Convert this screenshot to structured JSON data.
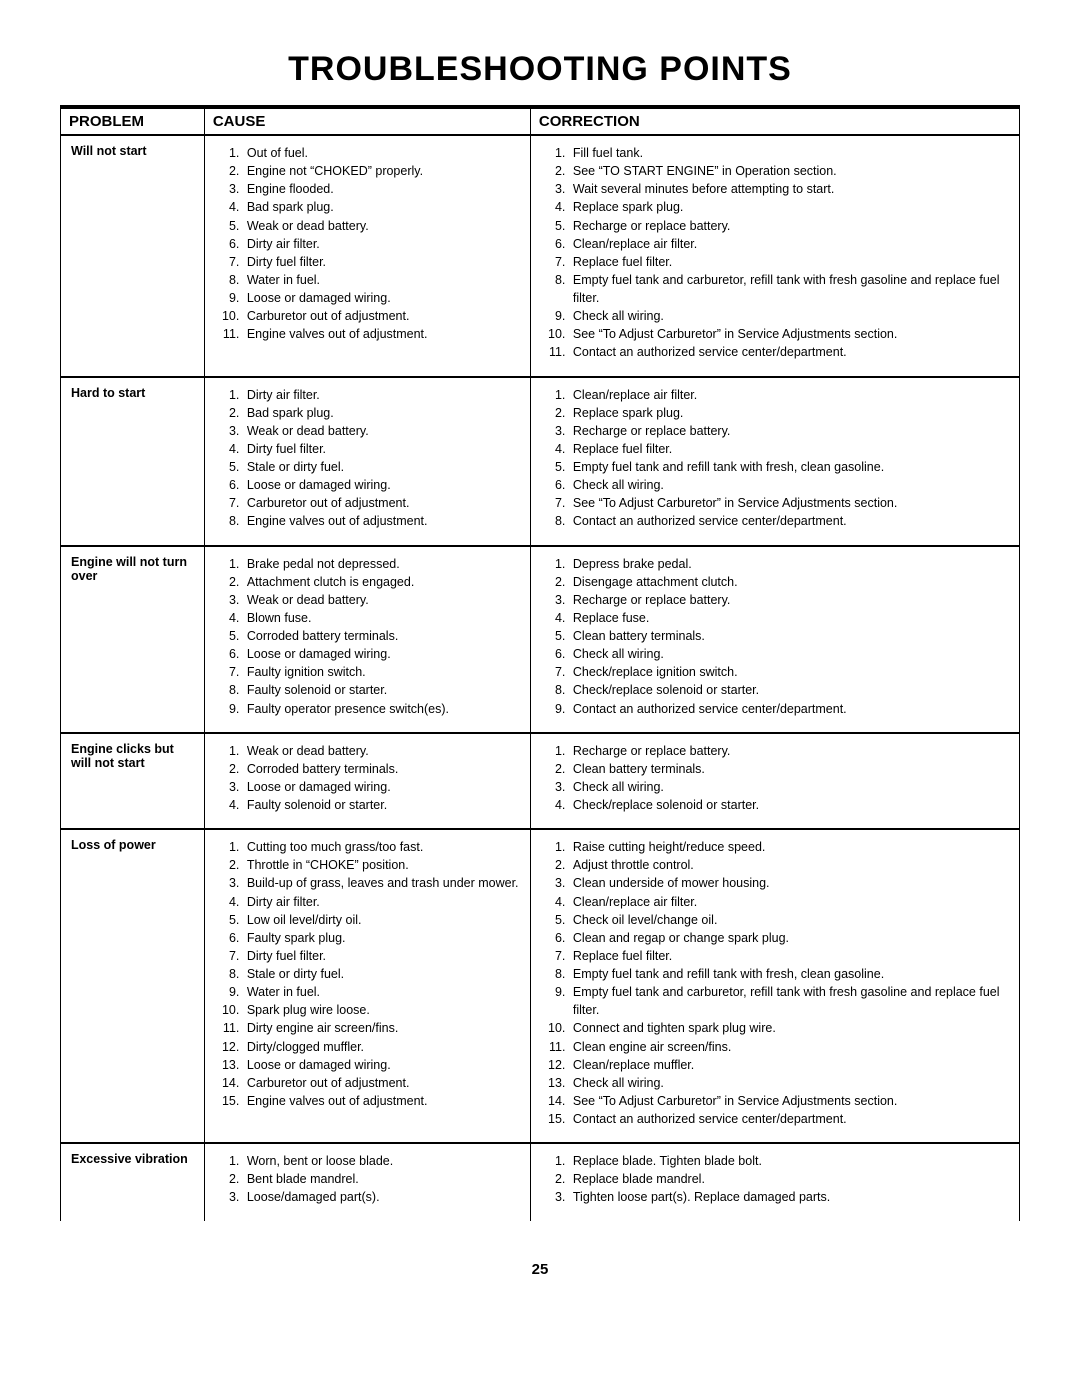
{
  "title": "TROUBLESHOOTING POINTS",
  "pageNumber": "25",
  "columns": {
    "problem": "PROBLEM",
    "cause": "CAUSE",
    "correction": "CORRECTION"
  },
  "colWidths": {
    "problem": "15%",
    "cause": "34%",
    "correction": "51%"
  },
  "rows": [
    {
      "problem": "Will not start",
      "causes": [
        "Out of fuel.",
        "Engine not “CHOKED” properly.",
        "Engine flooded.",
        "Bad spark plug.",
        "Weak or dead battery.",
        "Dirty air filter.",
        "Dirty fuel filter.",
        "Water in fuel.",
        "Loose or damaged wiring.",
        "Carburetor out of adjustment.",
        "Engine valves out of adjustment."
      ],
      "corrections": [
        "Fill fuel tank.",
        "See “TO START ENGINE” in Operation section.",
        "Wait several minutes before attempting to start.",
        "Replace spark plug.",
        "Recharge or replace battery.",
        "Clean/replace air filter.",
        "Replace fuel filter.",
        "Empty fuel tank and carburetor, refill tank with fresh gasoline and replace fuel filter.",
        "Check all wiring.",
        "See “To Adjust Carburetor” in Service Adjustments section.",
        "Contact an authorized service center/department."
      ]
    },
    {
      "problem": "Hard to start",
      "causes": [
        "Dirty air filter.",
        "Bad spark plug.",
        "Weak or dead battery.",
        "Dirty fuel filter.",
        "Stale or dirty fuel.",
        "Loose or damaged wiring.",
        "Carburetor out of adjustment.",
        "Engine valves out of adjustment."
      ],
      "corrections": [
        "Clean/replace air filter.",
        "Replace spark plug.",
        "Recharge or replace battery.",
        "Replace fuel filter.",
        "Empty fuel tank and refill tank with fresh, clean gasoline.",
        "Check all wiring.",
        "See “To Adjust Carburetor” in Service Adjustments section.",
        "Contact an authorized service center/department."
      ]
    },
    {
      "problem": "Engine will not turn over",
      "causes": [
        "Brake pedal not depressed.",
        "Attachment clutch is engaged.",
        "Weak or dead battery.",
        "Blown fuse.",
        "Corroded battery terminals.",
        "Loose or damaged wiring.",
        "Faulty ignition switch.",
        "Faulty solenoid or starter.",
        "Faulty operator presence switch(es)."
      ],
      "corrections": [
        "Depress brake pedal.",
        "Disengage attachment clutch.",
        "Recharge or replace battery.",
        "Replace fuse.",
        "Clean battery terminals.",
        "Check all wiring.",
        "Check/replace ignition switch.",
        "Check/replace solenoid or starter.",
        "Contact an authorized service center/department."
      ]
    },
    {
      "problem": "Engine clicks but will not start",
      "causes": [
        "Weak or dead battery.",
        "Corroded battery terminals.",
        "Loose or damaged wiring.",
        "Faulty solenoid or starter."
      ],
      "corrections": [
        "Recharge or replace battery.",
        "Clean battery terminals.",
        "Check all wiring.",
        "Check/replace solenoid or starter."
      ]
    },
    {
      "problem": "Loss of power",
      "causes": [
        "Cutting too much grass/too fast.",
        "Throttle in “CHOKE” position.",
        "Build-up of grass, leaves and trash under mower.",
        "Dirty air filter.",
        "Low oil level/dirty oil.",
        "Faulty spark plug.",
        "Dirty fuel filter.",
        "Stale or dirty fuel.",
        "Water in fuel.",
        "Spark plug wire loose.",
        "Dirty engine air screen/fins.",
        "Dirty/clogged muffler.",
        "Loose or damaged wiring.",
        "Carburetor out of adjustment.",
        "Engine valves out of adjustment."
      ],
      "corrections": [
        "Raise cutting height/reduce speed.",
        "Adjust throttle control.",
        "Clean underside of mower housing.",
        "Clean/replace air filter.",
        "Check oil level/change oil.",
        "Clean and regap or change spark plug.",
        "Replace fuel filter.",
        "Empty fuel tank and refill tank with fresh, clean gasoline.",
        "Empty fuel tank and carburetor, refill tank with fresh gasoline and replace fuel filter.",
        "Connect and tighten spark plug wire.",
        "Clean engine air screen/fins.",
        "Clean/replace muffler.",
        "Check all wiring.",
        "See “To Adjust Carburetor” in Service Adjustments section.",
        "Contact an authorized service center/department."
      ]
    },
    {
      "problem": "Excessive vibration",
      "causes": [
        "Worn, bent or loose blade.",
        "Bent blade mandrel.",
        "Loose/damaged part(s)."
      ],
      "corrections": [
        "Replace blade.  Tighten blade bolt.",
        "Replace blade mandrel.",
        "Tighten loose part(s).  Replace damaged parts."
      ]
    }
  ]
}
